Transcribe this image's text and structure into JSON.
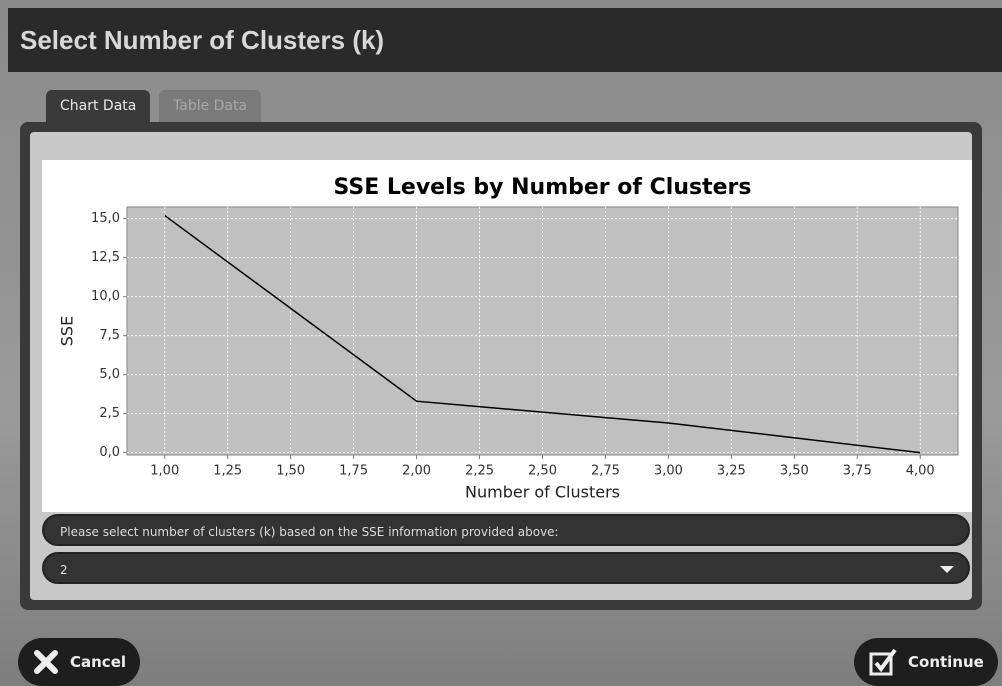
{
  "window": {
    "title": "Select Number of Clusters (k)"
  },
  "tabs": [
    "Chart Data",
    "Table Data"
  ],
  "chart_data": {
    "type": "line",
    "title": "SSE Levels by Number of Clusters",
    "xlabel": "Number of Clusters",
    "ylabel": "SSE",
    "x": [
      1,
      2,
      3,
      4
    ],
    "values": [
      15.2,
      3.3,
      1.9,
      0.0
    ],
    "color": "#000000",
    "xlim": [
      0.85,
      4.15
    ],
    "ylim": [
      -0.15,
      15.75
    ],
    "xticks": [
      {
        "value": 1,
        "label": "1,00"
      },
      {
        "value": 1.25,
        "label": "1,25"
      },
      {
        "value": 1.5,
        "label": "1,50"
      },
      {
        "value": 1.75,
        "label": "1,75"
      },
      {
        "value": 2,
        "label": "2,00"
      },
      {
        "value": 2.25,
        "label": "2,25"
      },
      {
        "value": 2.5,
        "label": "2,50"
      },
      {
        "value": 2.75,
        "label": "2,75"
      },
      {
        "value": 3,
        "label": "3,00"
      },
      {
        "value": 3.25,
        "label": "3,25"
      },
      {
        "value": 3.5,
        "label": "3,50"
      },
      {
        "value": 3.75,
        "label": "3,75"
      },
      {
        "value": 4,
        "label": "4,00"
      }
    ],
    "yticks": [
      {
        "value": 0,
        "label": "0,0"
      },
      {
        "value": 2.5,
        "label": "2,5"
      },
      {
        "value": 5,
        "label": "5,0"
      },
      {
        "value": 7.5,
        "label": "7,5"
      },
      {
        "value": 10,
        "label": "10,0"
      },
      {
        "value": 12.5,
        "label": "12,5"
      },
      {
        "value": 15,
        "label": "15,0"
      }
    ],
    "grid": true
  },
  "prompt": "Please select number of clusters (k) based on the SSE information provided above:",
  "selection": "2",
  "buttons": {
    "cancel": "Cancel",
    "continue": "Continue"
  }
}
